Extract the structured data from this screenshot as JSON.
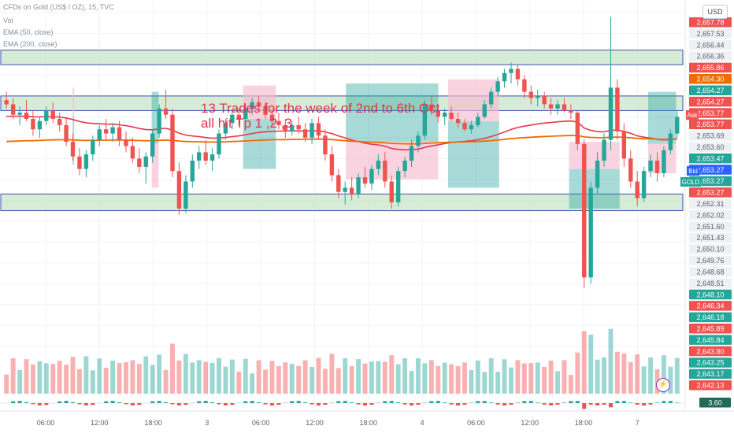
{
  "legend": {
    "title": "CFDs on Gold (US$ / OZ), 15, TVC",
    "vol": "Vol",
    "ema50": "EMA (50, close)",
    "ema200": "EMA (200, close)"
  },
  "currency": "USD",
  "annotation": {
    "line1": "13 Trades for the week of 2nd to 6th Oct",
    "line2": "all hit Tp 1 ,2 ,3"
  },
  "colors": {
    "up": "#26a69a",
    "down": "#ef5350",
    "ema50": "#e53950",
    "ema200": "#ef6c00",
    "zone_fill": "#c8e6c9",
    "zone_border": "#3f51b5",
    "profit": "#26a69a",
    "loss": "#f8bbd0"
  },
  "icons": {
    "alert": "lightning-bolt-icon"
  },
  "chart_data": {
    "type": "candlestick",
    "title": "CFDs on Gold (US$ / OZ), 15, TVC",
    "ylim": [
      2641.8,
      2658.3
    ],
    "x_ticks": [
      "06:00",
      "12:00",
      "18:00",
      "3",
      "06:00",
      "12:00",
      "18:00",
      "4",
      "06:00",
      "12:00",
      "18:00",
      "7"
    ],
    "y_price_labels": [
      {
        "v": "2,657.78",
        "c": "#ef5350"
      },
      {
        "v": "2,657.53",
        "c": "#5d606b"
      },
      {
        "v": "2,656.44",
        "c": "#5d606b"
      },
      {
        "v": "2,656.36",
        "c": "#5d606b"
      },
      {
        "v": "2,655.86",
        "c": "#ef5350"
      },
      {
        "v": "2,654.30",
        "c": "#ef6c00"
      },
      {
        "v": "2,654.27",
        "c": "#26a69a"
      },
      {
        "v": "2,654.27",
        "c": "#ef5350"
      },
      {
        "v": "2,653.77",
        "c": "#ef5350"
      },
      {
        "v": "2,653.77",
        "c": "#ef5350"
      },
      {
        "v": "2,653.69",
        "c": "#5d606b"
      },
      {
        "v": "2,653.60",
        "c": "#5d606b"
      },
      {
        "v": "2,653.47",
        "c": "#26a69a"
      },
      {
        "v": "2,653.27",
        "c": "#2962ff"
      },
      {
        "v": "2,653.27",
        "c": "#26a69a"
      },
      {
        "v": "2,653.27",
        "c": "#ef5350"
      },
      {
        "v": "2,652.31",
        "c": "#5d606b"
      },
      {
        "v": "2,652.02",
        "c": "#5d606b"
      },
      {
        "v": "2,651.60",
        "c": "#5d606b"
      },
      {
        "v": "2,651.43",
        "c": "#5d606b"
      },
      {
        "v": "2,650.10",
        "c": "#5d606b"
      },
      {
        "v": "2,649.76",
        "c": "#5d606b"
      },
      {
        "v": "2,648.68",
        "c": "#5d606b"
      },
      {
        "v": "2,648.51",
        "c": "#5d606b"
      },
      {
        "v": "2,648.10",
        "c": "#26a69a"
      },
      {
        "v": "2,646.34",
        "c": "#ef5350"
      },
      {
        "v": "2,646.18",
        "c": "#26a69a"
      },
      {
        "v": "2,645.89",
        "c": "#ef5350"
      },
      {
        "v": "2,645.84",
        "c": "#26a69a"
      },
      {
        "v": "2,643.80",
        "c": "#ef5350"
      },
      {
        "v": "2,643.25",
        "c": "#26a69a"
      },
      {
        "v": "2,643.17",
        "c": "#26a69a"
      },
      {
        "v": "2,642.13",
        "c": "#ef5350"
      }
    ],
    "side_tags": [
      {
        "label": "Ask",
        "value": "2,653.77",
        "color": "#ef5350"
      },
      {
        "label": "Bid",
        "value": "2,653.27",
        "color": "#2962ff"
      },
      {
        "label": "GOLD",
        "value": "2,653.27",
        "color": "#26a69a"
      }
    ],
    "indicator_value": "3.60",
    "series": [
      {
        "name": "EMA (50, close)",
        "color": "#e53950"
      },
      {
        "name": "EMA (200, close)",
        "color": "#ef6c00"
      }
    ],
    "candles": [
      [
        2653.8,
        2654.2,
        2653.4,
        2653.6
      ],
      [
        2653.6,
        2653.9,
        2652.9,
        2653.1
      ],
      [
        2653.1,
        2653.5,
        2652.6,
        2653.2
      ],
      [
        2653.2,
        2653.8,
        2652.8,
        2652.9
      ],
      [
        2652.9,
        2653.3,
        2652.1,
        2652.4
      ],
      [
        2652.4,
        2653.0,
        2652.0,
        2652.8
      ],
      [
        2652.8,
        2653.5,
        2652.6,
        2653.3
      ],
      [
        2653.3,
        2653.7,
        2652.7,
        2652.9
      ],
      [
        2652.9,
        2653.2,
        2652.3,
        2652.6
      ],
      [
        2652.6,
        2653.0,
        2651.6,
        2651.8
      ],
      [
        2651.8,
        2652.2,
        2650.9,
        2651.1
      ],
      [
        2651.1,
        2651.5,
        2650.2,
        2650.5
      ],
      [
        2650.5,
        2651.4,
        2650.1,
        2651.2
      ],
      [
        2651.2,
        2652.1,
        2650.9,
        2651.9
      ],
      [
        2651.9,
        2652.6,
        2651.6,
        2652.4
      ],
      [
        2652.4,
        2652.9,
        2651.9,
        2652.2
      ],
      [
        2652.2,
        2652.7,
        2651.8,
        2652.5
      ],
      [
        2652.5,
        2652.8,
        2651.6,
        2651.9
      ],
      [
        2651.9,
        2652.3,
        2651.3,
        2651.6
      ],
      [
        2651.6,
        2652.0,
        2650.8,
        2651.0
      ],
      [
        2651.0,
        2651.5,
        2650.3,
        2650.6
      ],
      [
        2650.6,
        2651.3,
        2649.8,
        2651.1
      ],
      [
        2651.1,
        2652.4,
        2650.8,
        2652.2
      ],
      [
        2652.2,
        2653.6,
        2652.0,
        2653.4
      ],
      [
        2653.4,
        2654.3,
        2652.9,
        2653.1
      ],
      [
        2653.1,
        2653.4,
        2650.1,
        2650.4
      ],
      [
        2650.4,
        2650.8,
        2648.3,
        2648.6
      ],
      [
        2648.6,
        2650.2,
        2648.4,
        2649.9
      ],
      [
        2649.9,
        2651.2,
        2649.6,
        2650.9
      ],
      [
        2650.9,
        2651.6,
        2650.5,
        2651.3
      ],
      [
        2651.3,
        2651.9,
        2650.7,
        2650.9
      ],
      [
        2650.9,
        2651.5,
        2650.4,
        2651.2
      ],
      [
        2651.2,
        2652.4,
        2651.0,
        2652.2
      ],
      [
        2652.2,
        2652.9,
        2651.9,
        2652.7
      ],
      [
        2652.7,
        2653.3,
        2652.4,
        2653.1
      ],
      [
        2653.1,
        2653.4,
        2652.6,
        2652.9
      ],
      [
        2652.9,
        2653.6,
        2652.7,
        2653.4
      ],
      [
        2653.4,
        2653.9,
        2653.1,
        2653.7
      ],
      [
        2653.7,
        2654.0,
        2653.3,
        2653.5
      ],
      [
        2653.5,
        2653.7,
        2652.9,
        2653.1
      ],
      [
        2653.1,
        2653.4,
        2652.6,
        2652.8
      ],
      [
        2652.8,
        2653.2,
        2652.4,
        2652.6
      ],
      [
        2652.6,
        2652.9,
        2652.0,
        2652.3
      ],
      [
        2652.3,
        2652.8,
        2652.1,
        2652.6
      ],
      [
        2652.6,
        2653.0,
        2652.2,
        2652.4
      ],
      [
        2652.4,
        2652.7,
        2651.8,
        2652.0
      ],
      [
        2652.0,
        2652.9,
        2651.7,
        2652.7
      ],
      [
        2652.7,
        2653.0,
        2651.9,
        2652.1
      ],
      [
        2652.1,
        2652.4,
        2650.9,
        2651.2
      ],
      [
        2651.2,
        2651.6,
        2649.9,
        2650.2
      ],
      [
        2650.2,
        2650.5,
        2649.1,
        2649.4
      ],
      [
        2649.4,
        2649.9,
        2648.8,
        2649.6
      ],
      [
        2649.6,
        2650.1,
        2649.0,
        2649.3
      ],
      [
        2649.3,
        2650.3,
        2649.1,
        2650.1
      ],
      [
        2650.1,
        2650.6,
        2649.6,
        2649.8
      ],
      [
        2649.8,
        2650.7,
        2649.5,
        2650.5
      ],
      [
        2650.5,
        2651.2,
        2650.2,
        2650.9
      ],
      [
        2650.9,
        2651.3,
        2649.6,
        2649.9
      ],
      [
        2649.9,
        2650.2,
        2648.6,
        2648.9
      ],
      [
        2648.9,
        2650.6,
        2648.7,
        2650.4
      ],
      [
        2650.4,
        2651.1,
        2650.1,
        2650.9
      ],
      [
        2650.9,
        2651.9,
        2650.6,
        2651.6
      ],
      [
        2651.6,
        2652.3,
        2651.3,
        2652.1
      ],
      [
        2652.1,
        2653.8,
        2651.9,
        2653.6
      ],
      [
        2653.6,
        2654.0,
        2653.1,
        2653.3
      ],
      [
        2653.3,
        2653.6,
        2652.7,
        2653.0
      ],
      [
        2653.0,
        2653.4,
        2652.6,
        2653.2
      ],
      [
        2653.2,
        2653.5,
        2652.8,
        2652.9
      ],
      [
        2652.9,
        2653.2,
        2652.5,
        2652.7
      ],
      [
        2652.7,
        2652.9,
        2652.3,
        2652.4
      ],
      [
        2652.4,
        2652.8,
        2652.2,
        2652.6
      ],
      [
        2652.6,
        2653.2,
        2652.5,
        2653.0
      ],
      [
        2653.0,
        2653.8,
        2652.9,
        2653.6
      ],
      [
        2653.6,
        2654.4,
        2653.4,
        2654.2
      ],
      [
        2654.2,
        2654.9,
        2654.0,
        2654.7
      ],
      [
        2654.7,
        2655.3,
        2654.4,
        2655.1
      ],
      [
        2655.1,
        2655.6,
        2654.6,
        2655.3
      ],
      [
        2655.3,
        2655.5,
        2654.5,
        2654.8
      ],
      [
        2654.8,
        2655.0,
        2653.9,
        2654.2
      ],
      [
        2654.2,
        2654.5,
        2653.6,
        2653.9
      ],
      [
        2653.9,
        2654.3,
        2653.5,
        2654.0
      ],
      [
        2654.0,
        2654.2,
        2653.4,
        2653.6
      ],
      [
        2653.6,
        2653.9,
        2653.1,
        2653.4
      ],
      [
        2653.4,
        2653.8,
        2653.1,
        2653.6
      ],
      [
        2653.6,
        2653.9,
        2653.2,
        2653.3
      ],
      [
        2653.3,
        2653.6,
        2652.9,
        2653.2
      ],
      [
        2653.2,
        2653.3,
        2651.4,
        2651.7
      ],
      [
        2651.7,
        2651.9,
        2644.8,
        2645.3
      ],
      [
        2645.3,
        2649.9,
        2645.0,
        2649.6
      ],
      [
        2649.6,
        2651.3,
        2649.3,
        2650.9
      ],
      [
        2650.9,
        2652.2,
        2650.6,
        2651.9
      ],
      [
        2651.9,
        2657.8,
        2651.4,
        2654.4
      ],
      [
        2654.4,
        2654.8,
        2651.9,
        2652.3
      ],
      [
        2652.3,
        2652.7,
        2650.6,
        2651.0
      ],
      [
        2651.0,
        2651.4,
        2649.6,
        2649.9
      ],
      [
        2649.9,
        2650.4,
        2648.7,
        2649.1
      ],
      [
        2649.1,
        2650.6,
        2648.9,
        2650.4
      ],
      [
        2650.4,
        2651.2,
        2650.1,
        2650.9
      ],
      [
        2650.9,
        2651.3,
        2649.9,
        2650.3
      ],
      [
        2650.3,
        2651.6,
        2650.1,
        2651.4
      ],
      [
        2651.4,
        2652.4,
        2651.2,
        2652.2
      ],
      [
        2652.2,
        2653.3,
        2652.0,
        2653.0
      ]
    ],
    "trades": [
      {
        "x0": 0.5,
        "x1": 0.53,
        "entry": 2653.0,
        "tp": 2650.7,
        "sl": 2654.4,
        "result": "win"
      },
      {
        "x0": 1.97,
        "x1": 2.1,
        "entry": 2651.7,
        "tp": 2654.2,
        "sl": 2649.6,
        "result": "win"
      },
      {
        "x0": 3.67,
        "x1": 4.28,
        "entry": 2652.9,
        "tp": 2650.5,
        "sl": 2654.5,
        "result": "win"
      },
      {
        "x0": 5.58,
        "x1": 7.3,
        "entry": 2651.8,
        "tp": 2654.6,
        "sl": 2650.0,
        "result": "win"
      },
      {
        "x0": 7.48,
        "x1": 8.43,
        "entry": 2652.8,
        "tp": 2649.6,
        "sl": 2654.8,
        "result": "win"
      },
      {
        "x0": 9.73,
        "x1": 10.67,
        "entry": 2650.5,
        "tp": 2648.6,
        "sl": 2651.8,
        "result": "win"
      },
      {
        "x0": 11.2,
        "x1": 11.72,
        "entry": 2651.7,
        "tp": 2654.2,
        "sl": 2650.3,
        "result": "win"
      },
      {
        "x0": 13.7,
        "x1": 15.0,
        "entry": 2652.2,
        "tp": 2655.9,
        "sl": 2650.6,
        "result": "win"
      },
      {
        "x0": 15.27,
        "x1": 17.33,
        "entry": 2652.9,
        "tp": 2643.8,
        "sl": 2655.2,
        "result": "win"
      },
      {
        "x0": 19.25,
        "x1": 19.67,
        "entry": 2649.9,
        "tp": 2652.1,
        "sl": 2648.6,
        "result": "win"
      }
    ],
    "zones": [
      [
        2655.5,
        2656.2
      ],
      [
        2653.3,
        2654.0
      ],
      [
        2648.5,
        2649.3
      ]
    ]
  }
}
